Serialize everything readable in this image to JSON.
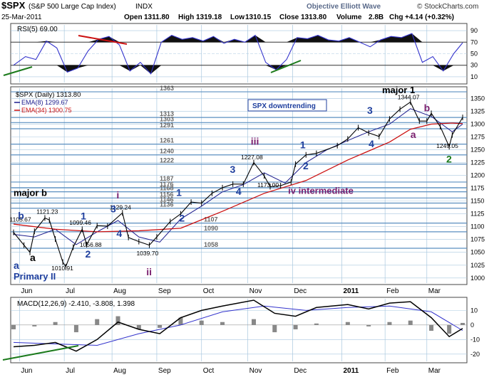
{
  "header": {
    "symbol": "$SPX",
    "name": "(S&P 500 Large Cap Index)",
    "exchange": "INDX",
    "brand": "Objective Elliott Wave",
    "date": "25-Mar-2011",
    "open_label": "Open",
    "open": "1311.80",
    "high_label": "High",
    "high": "1319.18",
    "low_label": "Low",
    "low": "1310.15",
    "close_label": "Close",
    "close": "1313.80",
    "volume_label": "Volume",
    "volume": "2.8B",
    "chg_label": "Chg",
    "chg": "+4.14 (+0.32%)",
    "copyright": "© StockCharts.com"
  },
  "colors": {
    "price": "#000000",
    "ema8": "#1a1a8c",
    "ema34": "#cc1111",
    "rsi_line": "#3333cc",
    "grid": "#a9c8df",
    "hline": "#5b8fc0",
    "wave_blue": "#1f3f9e",
    "wave_purple": "#7a1f6e",
    "wave_green": "#1b7a1b",
    "macd_hist": "#888888",
    "panel_bg": "#ffffff"
  },
  "chart_data": [
    {
      "type": "line",
      "panel": "rsi",
      "title": "RSI(5) 69.00",
      "y_ticks": [
        10,
        30,
        50,
        70,
        90
      ],
      "ylim": [
        0,
        100
      ],
      "x_range": [
        "2010-05-28",
        "2011-03-25"
      ],
      "series": [
        {
          "name": "RSI(5)",
          "x": [
            "2010-05-28",
            "2010-06-05",
            "2010-06-12",
            "2010-06-19",
            "2010-06-26",
            "2010-07-03",
            "2010-07-10",
            "2010-07-17",
            "2010-07-24",
            "2010-07-31",
            "2010-08-07",
            "2010-08-14",
            "2010-08-21",
            "2010-08-28",
            "2010-09-04",
            "2010-09-11",
            "2010-09-18",
            "2010-09-25",
            "2010-10-02",
            "2010-10-09",
            "2010-10-16",
            "2010-10-23",
            "2010-10-30",
            "2010-11-06",
            "2010-11-13",
            "2010-11-20",
            "2010-11-27",
            "2010-12-04",
            "2010-12-11",
            "2010-12-18",
            "2010-12-25",
            "2011-01-01",
            "2011-01-08",
            "2011-01-15",
            "2011-01-22",
            "2011-01-29",
            "2011-02-05",
            "2011-02-12",
            "2011-02-19",
            "2011-02-26",
            "2011-03-05",
            "2011-03-12",
            "2011-03-19",
            "2011-03-25"
          ],
          "values": [
            30,
            45,
            40,
            72,
            60,
            18,
            25,
            55,
            75,
            80,
            65,
            20,
            35,
            15,
            70,
            82,
            75,
            78,
            72,
            80,
            68,
            75,
            70,
            82,
            35,
            22,
            40,
            78,
            76,
            82,
            74,
            72,
            78,
            70,
            62,
            74,
            80,
            78,
            85,
            35,
            45,
            20,
            50,
            69
          ]
        }
      ]
    },
    {
      "type": "line",
      "panel": "price",
      "title": "$SPX (Daily) 1313.80",
      "ylabel": "",
      "ylim": [
        990,
        1370
      ],
      "y_ticks": [
        1000,
        1025,
        1050,
        1075,
        1100,
        1125,
        1150,
        1175,
        1200,
        1225,
        1250,
        1275,
        1300,
        1325,
        1350
      ],
      "x_ticks": [
        "Jun",
        "Jul",
        "Aug",
        "Sep",
        "Oct",
        "Nov",
        "Dec",
        "2011",
        "Feb",
        "Mar"
      ],
      "x_tick_dates": [
        "2010-06-01",
        "2010-07-01",
        "2010-08-02",
        "2010-09-01",
        "2010-10-01",
        "2010-11-01",
        "2010-12-01",
        "2011-01-03",
        "2011-02-01",
        "2011-03-01"
      ],
      "x_range": [
        "2010-05-28",
        "2011-03-25"
      ],
      "horizontal_levels": [
        1363,
        1313,
        1303,
        1291,
        1261,
        1240,
        1222,
        1187,
        1176,
        1168,
        1156,
        1146,
        1136,
        1107,
        1090,
        1058
      ],
      "legend": [
        "$SPX (Daily) 1313.80",
        "EMA(8) 1299.67",
        "EMA(34) 1300.75"
      ],
      "series": [
        {
          "name": "$SPX (Daily) 1313.80",
          "x": [
            "2010-05-28",
            "2010-06-04",
            "2010-06-08",
            "2010-06-11",
            "2010-06-18",
            "2010-06-21",
            "2010-06-25",
            "2010-06-30",
            "2010-07-02",
            "2010-07-07",
            "2010-07-13",
            "2010-07-16",
            "2010-07-23",
            "2010-07-30",
            "2010-08-09",
            "2010-08-13",
            "2010-08-20",
            "2010-08-27",
            "2010-09-01",
            "2010-09-10",
            "2010-09-17",
            "2010-09-24",
            "2010-10-01",
            "2010-10-08",
            "2010-10-15",
            "2010-10-22",
            "2010-10-29",
            "2010-11-05",
            "2010-11-12",
            "2010-11-16",
            "2010-11-23",
            "2010-11-30",
            "2010-12-03",
            "2010-12-10",
            "2010-12-17",
            "2010-12-31",
            "2011-01-07",
            "2011-01-14",
            "2011-01-21",
            "2011-01-28",
            "2011-02-04",
            "2011-02-11",
            "2011-02-18",
            "2011-02-24",
            "2011-03-01",
            "2011-03-04",
            "2011-03-10",
            "2011-03-16",
            "2011-03-18",
            "2011-03-25"
          ],
          "values": [
            1089,
            1064,
            1050,
            1091,
            1117,
            1113,
            1076,
            1031,
            1022,
            1060,
            1095,
            1065,
            1102,
            1101,
            1127,
            1079,
            1071,
            1064,
            1080,
            1110,
            1125,
            1148,
            1146,
            1165,
            1176,
            1183,
            1183,
            1225,
            1199,
            1178,
            1180,
            1187,
            1222,
            1240,
            1243,
            1258,
            1271,
            1293,
            1283,
            1276,
            1310,
            1329,
            1343,
            1306,
            1306,
            1321,
            1295,
            1256,
            1279,
            1313
          ]
        },
        {
          "name": "EMA(8) 1299.67",
          "x": [
            "2010-05-28",
            "2010-06-11",
            "2010-06-25",
            "2010-07-09",
            "2010-07-23",
            "2010-08-06",
            "2010-08-20",
            "2010-09-03",
            "2010-09-17",
            "2010-10-01",
            "2010-10-15",
            "2010-10-29",
            "2010-11-12",
            "2010-11-26",
            "2010-12-10",
            "2010-12-24",
            "2011-01-07",
            "2011-01-21",
            "2011-02-04",
            "2011-02-18",
            "2011-03-04",
            "2011-03-18",
            "2011-03-25"
          ],
          "values": [
            1085,
            1080,
            1095,
            1065,
            1090,
            1112,
            1080,
            1070,
            1115,
            1140,
            1168,
            1182,
            1205,
            1185,
            1225,
            1250,
            1268,
            1285,
            1300,
            1330,
            1315,
            1285,
            1300
          ]
        },
        {
          "name": "EMA(34) 1300.75",
          "x": [
            "2010-05-28",
            "2010-06-25",
            "2010-07-23",
            "2010-08-20",
            "2010-09-17",
            "2010-10-15",
            "2010-11-12",
            "2010-12-10",
            "2011-01-07",
            "2011-02-04",
            "2011-02-18",
            "2011-03-04",
            "2011-03-18",
            "2011-03-25"
          ],
          "values": [
            1105,
            1095,
            1090,
            1092,
            1097,
            1130,
            1165,
            1190,
            1230,
            1265,
            1290,
            1300,
            1302,
            1301
          ]
        }
      ],
      "annotations": [
        {
          "text": "1105.67",
          "x": "2010-06-03",
          "y": 1105.67
        },
        {
          "text": "1121.23",
          "x": "2010-06-21",
          "y": 1121.23
        },
        {
          "text": "1099.46",
          "x": "2010-07-13",
          "y": 1099.46
        },
        {
          "text": "1056.88",
          "x": "2010-07-20",
          "y": 1056.88
        },
        {
          "text": "1010.91",
          "x": "2010-07-01",
          "y": 1010.91
        },
        {
          "text": "1129.24",
          "x": "2010-08-09",
          "y": 1129.24
        },
        {
          "text": "1039.70",
          "x": "2010-08-27",
          "y": 1039.7
        },
        {
          "text": "1227.08",
          "x": "2010-11-05",
          "y": 1227.08
        },
        {
          "text": "1173.00",
          "x": "2010-11-16",
          "y": 1173.0
        },
        {
          "text": "1344.07",
          "x": "2011-02-18",
          "y": 1344.07
        },
        {
          "text": "1249.05",
          "x": "2011-03-16",
          "y": 1249.05
        }
      ],
      "wave_labels": [
        {
          "text": "major b",
          "color": "black",
          "x": "2010-05-28",
          "y": 1160
        },
        {
          "text": "b",
          "color": "blue",
          "x": "2010-05-31",
          "y": 1115
        },
        {
          "text": "a",
          "color": "blue",
          "x": "2010-05-28",
          "y": 1018
        },
        {
          "text": "a",
          "color": "black",
          "x": "2010-06-08",
          "y": 1033
        },
        {
          "text": "Primary II",
          "color": "blue",
          "x": "2010-05-28",
          "y": 997
        },
        {
          "text": "1",
          "color": "blue",
          "x": "2010-07-12",
          "y": 1114
        },
        {
          "text": "2",
          "color": "blue",
          "x": "2010-07-15",
          "y": 1040
        },
        {
          "text": "3",
          "color": "blue",
          "x": "2010-08-01",
          "y": 1128
        },
        {
          "text": "4",
          "color": "blue",
          "x": "2010-08-05",
          "y": 1080
        },
        {
          "text": "i",
          "color": "purple",
          "x": "2010-08-05",
          "y": 1155
        },
        {
          "text": "ii",
          "color": "purple",
          "x": "2010-08-25",
          "y": 1005
        },
        {
          "text": "1",
          "color": "blue",
          "x": "2010-09-14",
          "y": 1160
        },
        {
          "text": "2",
          "color": "blue",
          "x": "2010-09-16",
          "y": 1110
        },
        {
          "text": "3",
          "color": "blue",
          "x": "2010-10-20",
          "y": 1205
        },
        {
          "text": "4",
          "color": "blue",
          "x": "2010-10-24",
          "y": 1162
        },
        {
          "text": "iii",
          "color": "purple",
          "x": "2010-11-03",
          "y": 1260
        },
        {
          "text": "iv intermediate",
          "color": "purple",
          "x": "2010-11-28",
          "y": 1164
        },
        {
          "text": "1",
          "color": "blue",
          "x": "2010-12-06",
          "y": 1253
        },
        {
          "text": "2",
          "color": "blue",
          "x": "2010-12-08",
          "y": 1212
        },
        {
          "text": "3",
          "color": "blue",
          "x": "2011-01-20",
          "y": 1320
        },
        {
          "text": "4",
          "color": "blue",
          "x": "2011-01-21",
          "y": 1255
        },
        {
          "text": "major 1",
          "color": "black",
          "x": "2011-01-30",
          "y": 1360
        },
        {
          "text": "b",
          "color": "purple",
          "x": "2011-02-27",
          "y": 1325
        },
        {
          "text": "a",
          "color": "purple",
          "x": "2011-02-18",
          "y": 1273
        },
        {
          "text": "2",
          "color": "green",
          "x": "2011-03-14",
          "y": 1225
        }
      ],
      "text_box": "SPX downtrending"
    },
    {
      "type": "line",
      "panel": "macd",
      "title": "MACD(12,26,9) -2.410, -3.808, 1.398",
      "y_ticks": [
        -20,
        -10,
        0,
        10
      ],
      "ylim": [
        -25,
        18
      ],
      "x_range": [
        "2010-05-28",
        "2011-03-25"
      ],
      "series": [
        {
          "name": "MACD(12,26,9)",
          "x": [
            "2010-05-28",
            "2010-06-11",
            "2010-06-25",
            "2010-07-09",
            "2010-07-23",
            "2010-08-06",
            "2010-08-20",
            "2010-09-03",
            "2010-09-17",
            "2010-10-01",
            "2010-10-15",
            "2010-11-05",
            "2010-11-19",
            "2010-12-03",
            "2010-12-17",
            "2011-01-07",
            "2011-01-21",
            "2011-02-04",
            "2011-02-18",
            "2011-03-04",
            "2011-03-16",
            "2011-03-25"
          ],
          "values": [
            -15,
            -14,
            -12,
            -18,
            -10,
            2,
            -3,
            -6,
            5,
            10,
            13,
            17,
            8,
            6,
            12,
            14,
            11,
            15,
            16,
            5,
            -8,
            -2.41
          ]
        },
        {
          "name": "Signal",
          "x": [
            "2010-05-28",
            "2010-06-25",
            "2010-07-23",
            "2010-08-20",
            "2010-09-17",
            "2010-10-15",
            "2010-11-12",
            "2010-12-10",
            "2011-01-07",
            "2011-02-04",
            "2011-03-04",
            "2011-03-25"
          ],
          "values": [
            -12,
            -13,
            -14,
            -6,
            0,
            9,
            13,
            10,
            12,
            13,
            9,
            -3.808
          ]
        },
        {
          "name": "Histogram",
          "x": [
            "2010-05-28",
            "2010-06-11",
            "2010-06-25",
            "2010-07-09",
            "2010-07-23",
            "2010-08-06",
            "2010-08-20",
            "2010-09-03",
            "2010-09-17",
            "2010-10-01",
            "2010-10-15",
            "2010-11-05",
            "2010-11-19",
            "2010-12-03",
            "2010-12-17",
            "2011-01-07",
            "2011-01-21",
            "2011-02-04",
            "2011-02-18",
            "2011-03-04",
            "2011-03-16",
            "2011-03-25"
          ],
          "values": [
            -3,
            -1,
            2,
            -5,
            4,
            6,
            -3,
            -2,
            5,
            3,
            2,
            4,
            -5,
            -3,
            1,
            2,
            -1,
            2,
            3,
            -4,
            -6,
            1.398
          ]
        }
      ]
    }
  ]
}
